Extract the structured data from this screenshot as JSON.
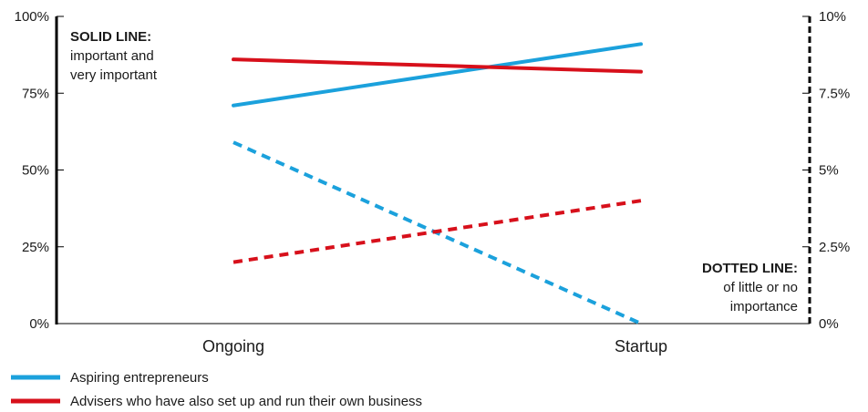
{
  "chart_data": {
    "type": "line",
    "categories": [
      "Ongoing",
      "Startup"
    ],
    "left_axis": {
      "ylim": [
        0,
        100
      ],
      "ticks": [
        "0%",
        "25%",
        "50%",
        "75%",
        "100%"
      ],
      "tick_values": [
        0,
        25,
        50,
        75,
        100
      ],
      "line_style": "solid"
    },
    "right_axis": {
      "ylim": [
        0,
        10
      ],
      "ticks": [
        "0%",
        "2.5%",
        "5%",
        "7.5%",
        "10%"
      ],
      "tick_values": [
        0,
        2.5,
        5,
        7.5,
        10
      ],
      "line_style": "dotted"
    },
    "series": [
      {
        "name": "Aspiring entrepreneurs",
        "color": "#1ba1dc",
        "solid_values": [
          71,
          91
        ],
        "dotted_values": [
          5.9,
          0
        ]
      },
      {
        "name": "Advisers who have also set up and run their own business",
        "color": "#d7101b",
        "solid_values": [
          86,
          82
        ],
        "dotted_values": [
          2.0,
          4.0
        ]
      }
    ],
    "annotations": {
      "solid": {
        "title": "SOLID LINE:",
        "lines": [
          "important and",
          "very important"
        ]
      },
      "dotted": {
        "title": "DOTTED LINE:",
        "lines": [
          "of little or no",
          "importance"
        ]
      }
    },
    "grid": false,
    "legend": "bottom-left"
  }
}
